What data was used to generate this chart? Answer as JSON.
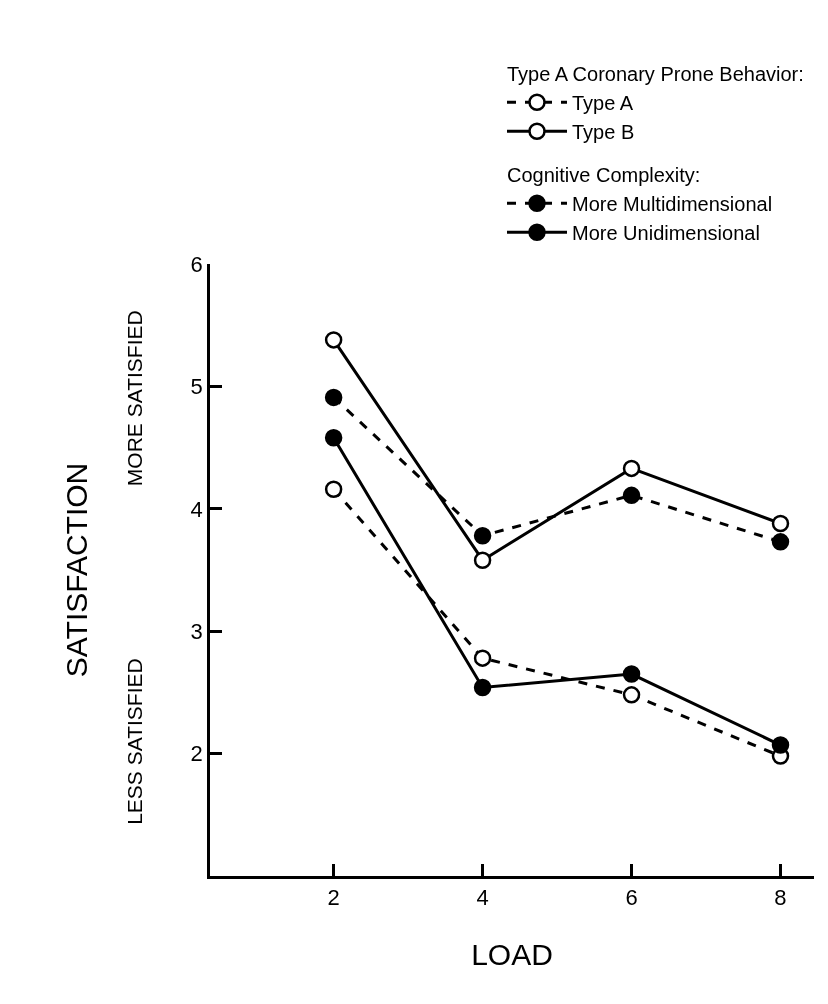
{
  "chart_data": {
    "type": "line",
    "xlabel": "LOAD",
    "ylabel": "SATISFACTION",
    "legend_title": "Type A Coronary Prone Behavior:",
    "annotations": [
      "Cognitive Complexity:",
      "MORE SATISFIED",
      "LESS SATISFIED"
    ],
    "x": [
      2,
      4,
      6,
      8
    ],
    "xlim": [
      0.34,
      8.45
    ],
    "xticks": [
      2,
      4,
      6,
      8
    ],
    "ylim": [
      1,
      6
    ],
    "yticks": [
      2,
      3,
      4,
      5,
      6
    ],
    "legend": "top right",
    "series": [
      {
        "name": "Type A",
        "color": "#000000",
        "marker": "circle-open",
        "line_style": "dashed",
        "values": [
          4.16,
          2.78,
          2.48,
          1.98
        ]
      },
      {
        "name": "Type B",
        "color": "#000000",
        "marker": "circle-open",
        "line_style": "solid",
        "values": [
          5.38,
          3.58,
          4.33,
          3.88
        ]
      },
      {
        "name": "More Multidimensional",
        "color": "#000000",
        "marker": "circle",
        "line_style": "dashed",
        "values": [
          4.91,
          3.78,
          4.11,
          3.73
        ]
      },
      {
        "name": "More Unidimensional",
        "color": "#000000",
        "marker": "circle",
        "line_style": "solid",
        "values": [
          4.58,
          2.54,
          2.65,
          2.07
        ]
      }
    ]
  }
}
